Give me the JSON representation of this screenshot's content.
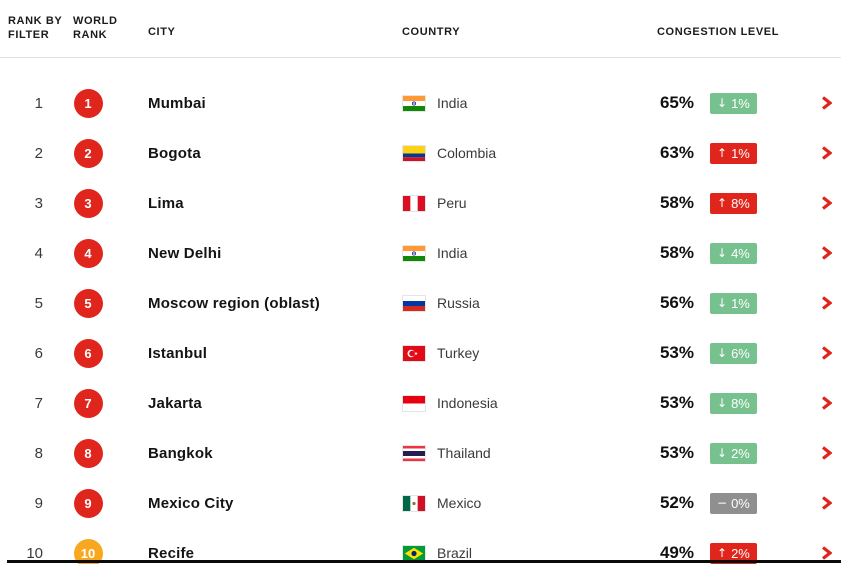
{
  "header": {
    "col_rank_filter": "RANK BY FILTER",
    "col_world_rank": "WORLD RANK",
    "col_city": "CITY",
    "col_country": "COUNTRY",
    "col_congestion": "CONGESTION LEVEL"
  },
  "icons": {
    "down": "↓",
    "up": "↑",
    "flat": "−"
  },
  "colors": {
    "rank_badge_red": "#df251c",
    "rank_badge_amber": "#f8a81f",
    "change_down_green": "#76c18e",
    "change_up_red": "#df251c",
    "change_flat_gray": "#8f8f8f",
    "chevron_red": "#df251c"
  },
  "rows": [
    {
      "filter_rank": "1",
      "world_rank": "1",
      "badge_color": "red",
      "city": "Mumbai",
      "country": "India",
      "flag": "india",
      "congestion": "65%",
      "change": "1%",
      "direction": "down"
    },
    {
      "filter_rank": "2",
      "world_rank": "2",
      "badge_color": "red",
      "city": "Bogota",
      "country": "Colombia",
      "flag": "colombia",
      "congestion": "63%",
      "change": "1%",
      "direction": "up"
    },
    {
      "filter_rank": "3",
      "world_rank": "3",
      "badge_color": "red",
      "city": "Lima",
      "country": "Peru",
      "flag": "peru",
      "congestion": "58%",
      "change": "8%",
      "direction": "up"
    },
    {
      "filter_rank": "4",
      "world_rank": "4",
      "badge_color": "red",
      "city": "New Delhi",
      "country": "India",
      "flag": "india",
      "congestion": "58%",
      "change": "4%",
      "direction": "down"
    },
    {
      "filter_rank": "5",
      "world_rank": "5",
      "badge_color": "red",
      "city": "Moscow region (oblast)",
      "country": "Russia",
      "flag": "russia",
      "congestion": "56%",
      "change": "1%",
      "direction": "down"
    },
    {
      "filter_rank": "6",
      "world_rank": "6",
      "badge_color": "red",
      "city": "Istanbul",
      "country": "Turkey",
      "flag": "turkey",
      "congestion": "53%",
      "change": "6%",
      "direction": "down"
    },
    {
      "filter_rank": "7",
      "world_rank": "7",
      "badge_color": "red",
      "city": "Jakarta",
      "country": "Indonesia",
      "flag": "indonesia",
      "congestion": "53%",
      "change": "8%",
      "direction": "down"
    },
    {
      "filter_rank": "8",
      "world_rank": "8",
      "badge_color": "red",
      "city": "Bangkok",
      "country": "Thailand",
      "flag": "thailand",
      "congestion": "53%",
      "change": "2%",
      "direction": "down"
    },
    {
      "filter_rank": "9",
      "world_rank": "9",
      "badge_color": "red",
      "city": "Mexico City",
      "country": "Mexico",
      "flag": "mexico",
      "congestion": "52%",
      "change": "0%",
      "direction": "flat"
    },
    {
      "filter_rank": "10",
      "world_rank": "10",
      "badge_color": "amber",
      "city": "Recife",
      "country": "Brazil",
      "flag": "brazil",
      "congestion": "49%",
      "change": "2%",
      "direction": "up"
    }
  ]
}
